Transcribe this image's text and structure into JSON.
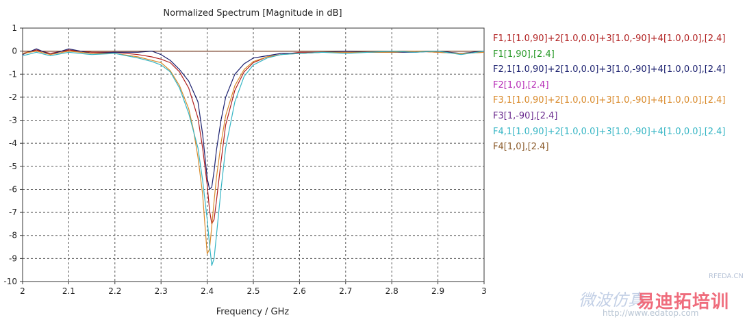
{
  "chart_data": {
    "type": "line",
    "title": "Normalized Spectrum [Magnitude in dB]",
    "xlabel": "Frequency / GHz",
    "ylabel": "",
    "xlim": [
      2,
      3
    ],
    "ylim": [
      -10,
      1
    ],
    "xticks": [
      "2",
      "2.1",
      "2.2",
      "2.3",
      "2.4",
      "2.5",
      "2.6",
      "2.7",
      "2.8",
      "2.9",
      "3"
    ],
    "yticks": [
      "1",
      "0",
      "-1",
      "-2",
      "-3",
      "-4",
      "-5",
      "-6",
      "-7",
      "-8",
      "-9",
      "-10"
    ],
    "grid": true,
    "legend_position": "right",
    "series": [
      {
        "name": "F1,1[1.0,90]+2[1.0,0.0]+3[1.0,-90]+4[1.0,0.0],[2.4]",
        "color": "#b01e1e",
        "x": [
          2.0,
          2.03,
          2.06,
          2.1,
          2.15,
          2.2,
          2.25,
          2.28,
          2.3,
          2.32,
          2.34,
          2.36,
          2.38,
          2.39,
          2.4,
          2.405,
          2.41,
          2.415,
          2.42,
          2.43,
          2.44,
          2.46,
          2.48,
          2.5,
          2.53,
          2.56,
          2.6,
          2.65,
          2.7,
          2.75,
          2.8,
          2.85,
          2.9,
          2.95,
          3.0
        ],
        "y": [
          -0.1,
          0.05,
          -0.1,
          0.05,
          -0.05,
          -0.05,
          -0.15,
          -0.25,
          -0.35,
          -0.5,
          -0.9,
          -1.6,
          -2.9,
          -4.2,
          -5.8,
          -6.9,
          -7.5,
          -7.3,
          -6.5,
          -4.8,
          -3.2,
          -1.7,
          -0.9,
          -0.5,
          -0.25,
          -0.15,
          -0.05,
          -0.05,
          -0.05,
          -0.05,
          -0.05,
          0.0,
          -0.05,
          -0.1,
          -0.05
        ]
      },
      {
        "name": "F1[1,90],[2.4]",
        "color": "#2a9a2a",
        "x": [
          2.0,
          3.0
        ],
        "y": [
          0.0,
          0.0
        ]
      },
      {
        "name": "F2,1[1.0,90]+2[1.0,0.0]+3[1.0,-90]+4[1.0,0.0],[2.4]",
        "color": "#1a1f6e",
        "x": [
          2.0,
          2.03,
          2.06,
          2.1,
          2.15,
          2.2,
          2.25,
          2.28,
          2.3,
          2.32,
          2.34,
          2.36,
          2.38,
          2.39,
          2.4,
          2.405,
          2.41,
          2.415,
          2.42,
          2.43,
          2.44,
          2.46,
          2.48,
          2.5,
          2.53,
          2.56,
          2.6,
          2.65,
          2.7,
          2.75,
          2.8,
          2.85,
          2.9,
          2.95,
          3.0
        ],
        "y": [
          -0.15,
          0.1,
          -0.15,
          0.1,
          -0.1,
          -0.05,
          -0.05,
          0.0,
          -0.15,
          -0.4,
          -0.8,
          -1.3,
          -2.2,
          -3.6,
          -5.5,
          -6.0,
          -5.9,
          -5.2,
          -4.3,
          -3.0,
          -2.0,
          -1.0,
          -0.55,
          -0.3,
          -0.2,
          -0.1,
          -0.1,
          -0.05,
          0.0,
          -0.05,
          -0.05,
          -0.05,
          0.0,
          -0.1,
          0.0
        ]
      },
      {
        "name": "F2[1,0],[2.4]",
        "color": "#b62bb6",
        "x": [
          2.0,
          3.0
        ],
        "y": [
          0.0,
          0.0
        ]
      },
      {
        "name": "F3,1[1.0,90]+2[1.0,0.0]+3[1.0,-90]+4[1.0,0.0],[2.4]",
        "color": "#d98a2b",
        "x": [
          2.0,
          2.03,
          2.06,
          2.1,
          2.15,
          2.2,
          2.25,
          2.28,
          2.3,
          2.32,
          2.34,
          2.36,
          2.37,
          2.38,
          2.39,
          2.395,
          2.4,
          2.405,
          2.41,
          2.415,
          2.42,
          2.43,
          2.44,
          2.46,
          2.48,
          2.5,
          2.53,
          2.56,
          2.6,
          2.65,
          2.7,
          2.75,
          2.8,
          2.85,
          2.9,
          2.95,
          3.0
        ],
        "y": [
          -0.1,
          0.0,
          -0.15,
          0.0,
          -0.1,
          -0.1,
          -0.25,
          -0.4,
          -0.5,
          -0.85,
          -1.5,
          -2.5,
          -3.4,
          -4.6,
          -6.2,
          -7.5,
          -8.8,
          -8.6,
          -7.6,
          -6.5,
          -5.5,
          -4.0,
          -2.8,
          -1.5,
          -0.8,
          -0.45,
          -0.25,
          -0.15,
          -0.1,
          -0.05,
          -0.05,
          -0.05,
          -0.05,
          0.0,
          -0.05,
          -0.1,
          -0.05
        ]
      },
      {
        "name": "F3[1,-90],[2.4]",
        "color": "#6a2a8e",
        "x": [
          2.0,
          3.0
        ],
        "y": [
          0.0,
          0.0
        ]
      },
      {
        "name": "F4,1[1.0,90]+2[1.0,0.0]+3[1.0,-90]+4[1.0,0.0],[2.4]",
        "color": "#35b5c4",
        "x": [
          2.0,
          2.03,
          2.06,
          2.1,
          2.15,
          2.2,
          2.25,
          2.28,
          2.3,
          2.32,
          2.34,
          2.36,
          2.38,
          2.39,
          2.4,
          2.405,
          2.41,
          2.415,
          2.42,
          2.43,
          2.44,
          2.46,
          2.48,
          2.5,
          2.53,
          2.56,
          2.6,
          2.65,
          2.7,
          2.75,
          2.8,
          2.85,
          2.9,
          2.95,
          3.0
        ],
        "y": [
          -0.2,
          -0.05,
          -0.2,
          -0.05,
          -0.15,
          -0.1,
          -0.3,
          -0.45,
          -0.6,
          -0.9,
          -1.6,
          -2.7,
          -4.2,
          -5.6,
          -7.3,
          -8.4,
          -9.3,
          -9.0,
          -8.0,
          -6.0,
          -4.2,
          -2.2,
          -1.1,
          -0.6,
          -0.3,
          -0.15,
          -0.1,
          -0.05,
          -0.1,
          -0.05,
          0.0,
          -0.05,
          0.0,
          -0.15,
          0.0
        ]
      },
      {
        "name": "F4[1,0],[2.4]",
        "color": "#8a5a2a",
        "x": [
          2.0,
          3.0
        ],
        "y": [
          0.0,
          0.0
        ]
      }
    ]
  },
  "watermark": {
    "site": "http://www.edatop.com",
    "brand": "易迪拓培训",
    "rfeda": "RFEDA.CN",
    "left_text": "微波仿真"
  }
}
